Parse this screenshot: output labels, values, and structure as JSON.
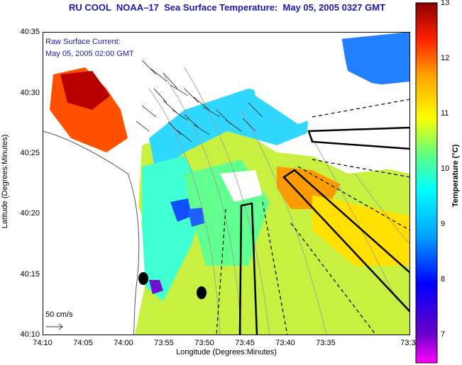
{
  "title": "RU COOL  NOAA–17  Sea Surface Temperature:  May 05, 2005 0327 GMT",
  "current_label": "Raw Surface Current:",
  "current_time": "May 05, 2005 02:00 GMT",
  "scale_label": "50 cm/s",
  "axes": {
    "xlabel": "Longitude (Degrees:Minutes)",
    "ylabel": "Latitude (Degrees:Minutes)",
    "x_ticks": [
      "74:10",
      "74:05",
      "74:00",
      "73:55",
      "73:50",
      "73:45",
      "73:40",
      "73:35",
      "73:3"
    ],
    "y_ticks": [
      "40:35",
      "40:30",
      "40:25",
      "40:20",
      "40:15",
      "40:10"
    ]
  },
  "colorbar": {
    "title": "Temperature (°C)",
    "ticks": [
      "13",
      "12",
      "11",
      "10",
      "9",
      "8",
      "7"
    ],
    "min": 6.5,
    "max": 13,
    "colors": [
      "#ff00ff",
      "#6a00c8",
      "#0000ff",
      "#00a0ff",
      "#00ffff",
      "#60ff80",
      "#ffff00",
      "#ffa000",
      "#ff2000",
      "#8b0000"
    ]
  },
  "colors": {
    "title": "#1a1aa8",
    "land": "#ffffff",
    "contour": "#9a9a9a",
    "arrows": "#000000"
  }
}
